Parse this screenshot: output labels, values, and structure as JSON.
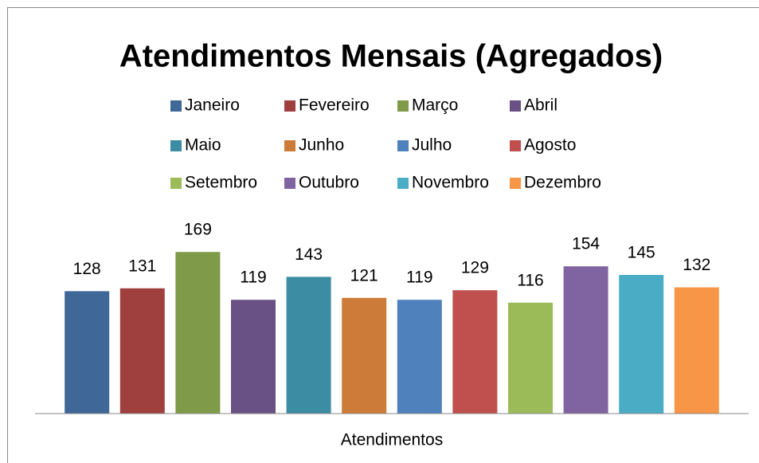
{
  "chart_data": {
    "type": "bar",
    "title": "Atendimentos Mensais (Agregados)",
    "categories": [
      "Atendimentos"
    ],
    "series": [
      {
        "name": "Janeiro",
        "color": "#3F6797",
        "values": [
          128
        ]
      },
      {
        "name": "Fevereiro",
        "color": "#A0403E",
        "values": [
          131
        ]
      },
      {
        "name": "Março",
        "color": "#7F9A48",
        "values": [
          169
        ]
      },
      {
        "name": "Abril",
        "color": "#695185",
        "values": [
          119
        ]
      },
      {
        "name": "Maio",
        "color": "#3C8DA3",
        "values": [
          143
        ]
      },
      {
        "name": "Junho",
        "color": "#CC7B38",
        "values": [
          121
        ]
      },
      {
        "name": "Julho",
        "color": "#4F81BD",
        "values": [
          119
        ]
      },
      {
        "name": "Agosto",
        "color": "#C0504D",
        "values": [
          129
        ]
      },
      {
        "name": "Setembro",
        "color": "#9BBB59",
        "values": [
          116
        ]
      },
      {
        "name": "Outubro",
        "color": "#8064A2",
        "values": [
          154
        ]
      },
      {
        "name": "Novembro",
        "color": "#4BACC6",
        "values": [
          145
        ]
      },
      {
        "name": "Dezembro",
        "color": "#F79646",
        "values": [
          132
        ]
      }
    ],
    "ylim": [
      0,
      180
    ],
    "legend": "top"
  }
}
